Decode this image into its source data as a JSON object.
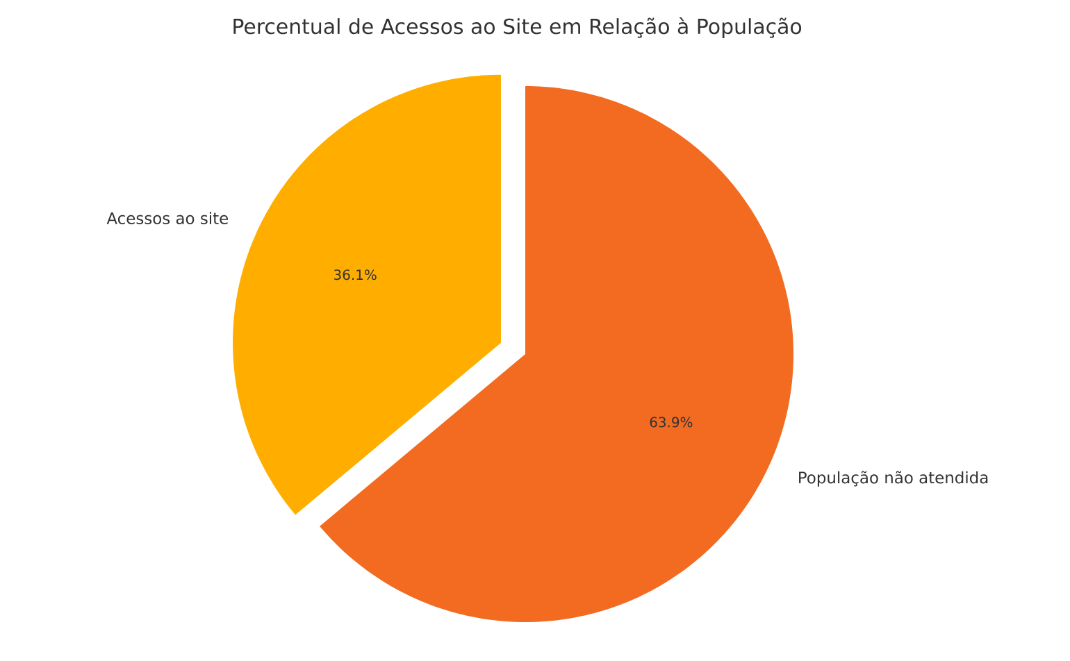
{
  "chart_data": {
    "type": "pie",
    "title": "Percentual de Acessos ao Site em Relação à População",
    "categories": [
      "Acessos ao site",
      "População não atendida"
    ],
    "values": [
      36.1,
      63.9
    ],
    "colors": [
      "#ffae00",
      "#f26b21"
    ],
    "value_labels": [
      "36.1%",
      "63.9%"
    ]
  }
}
